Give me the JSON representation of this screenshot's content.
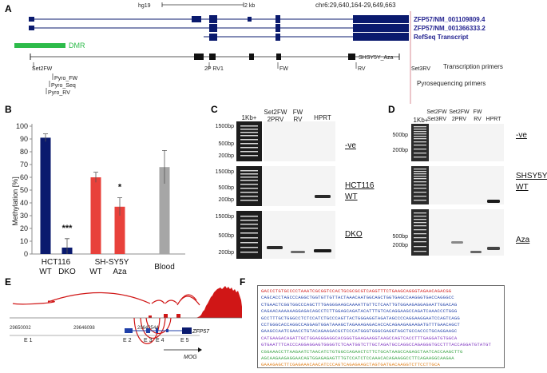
{
  "colors": {
    "navy": "#0a1a6e",
    "red": "#e8413b",
    "darkred": "#d01616",
    "green": "#2dbb4a",
    "grey": "#a6a6a6",
    "pink": "#d98c96",
    "blue": "#1f3fa8"
  },
  "panel_labels": {
    "a": "A",
    "b": "B",
    "c": "C",
    "d": "D",
    "e": "E",
    "f": "F"
  },
  "panel_a": {
    "genome": "hg19",
    "scale": "2 kb",
    "coords": "chr6:29,640,164-29,649,663",
    "tracks": [
      "ZFP57/NM_001109809.4",
      "ZFP57/NM_001366333.2",
      "RefSeq Transcript"
    ],
    "dmr": "DMR",
    "primers": [
      "Set2FW",
      "2P RV1",
      "FW",
      "RV",
      "Set3RV",
      "SHSY5Y_Aza"
    ],
    "pyro_primers": [
      "Pyro_FW",
      "Pyro_Seq",
      "Pyro_RV"
    ],
    "legend_transcription": "Transcription primers",
    "legend_pyro": "Pyrosequencing primers"
  },
  "panel_c": {
    "headers": [
      "1Kb+",
      "Set2FW\n2PRV",
      "FW\nRV",
      "HPRT"
    ],
    "ladder": [
      "1500bp",
      "500bp",
      "200bp"
    ],
    "rows": [
      "-ve",
      "HCT116\nWT",
      "DKO"
    ]
  },
  "panel_d": {
    "headers": [
      "1Kb+",
      "Set2FW\nSet3RV",
      "Set2FW\n2PRV",
      "FW\nRV",
      "HPRT"
    ],
    "ladder_top": [
      "500bp",
      "200bp"
    ],
    "ladder_bottom": [
      "500bp",
      "200bp"
    ],
    "rows": [
      "-ve",
      "SHSY5Y\nWT",
      "Aza"
    ]
  },
  "panel_e": {
    "coords": [
      "29650002",
      "29646098",
      "29642544"
    ],
    "exons": [
      "E 1",
      "E 2",
      "E 3",
      "E 4",
      "E 5"
    ],
    "gene": "ZFP57",
    "mog": "MOG"
  },
  "chart_data": {
    "type": "bar",
    "title": "",
    "ylabel": "Methylation [%]",
    "ylim": [
      0,
      100
    ],
    "yticks": [
      0,
      10,
      20,
      30,
      40,
      50,
      60,
      70,
      80,
      90,
      100
    ],
    "groups": [
      "HCT116",
      "SH-SY5Y",
      "Blood"
    ],
    "categories": [
      "WT",
      "DKO",
      "WT",
      "Aza",
      ""
    ],
    "values": [
      91,
      5,
      60,
      37,
      68
    ],
    "errors": [
      3,
      7,
      4,
      7,
      13
    ],
    "bar_colors": [
      "#0a1a6e",
      "#0a1a6e",
      "#e8413b",
      "#e8413b",
      "#a6a6a6"
    ],
    "significance": [
      {
        "bar": 1,
        "label": "***"
      },
      {
        "bar": 3,
        "label": "*"
      }
    ]
  },
  "panel_f": {
    "lines": [
      {
        "text": "GACCCTGTGCCCCTAAATCGCGGTCCACTGCGCGCGTCAGGTTTCTGAAGCAGGGTAGAACAGACGG",
        "color": "#d01616"
      },
      {
        "text": "CAGCACCTAGCCCAGGCTGGTGTTGTTACTAAACAATGGCAGCTGGTGAGCCAAGGGTGACCAGGGCC",
        "color": "#1f3fa8"
      },
      {
        "text": "CTGAACTCGGTGGCCCAGCTTTGAGGGAAGCAAAATTGTTCTCAATTGTGGAAGAGGAGAATTGGACAG",
        "color": "#1f3fa8"
      },
      {
        "text": "CAGAACAAAAAAGGAGACAGCCTCTTGGAGCAGATACATTTGTCACAGGAAGCCAGATCAAACCCTGGG",
        "color": "#1f3fa8"
      },
      {
        "text": "GCCTTTGCTGGGCCTCTCCATCTGCCCAGTTACTGGGAGGTAGATAGCCCCAGGAAGGAATCCAGTCAGG",
        "color": "#1f3fa8"
      },
      {
        "text": "CCTGGGCACCAGGCCAGGAGTGGATAAAGCTAGAAAGAGACACCACAGAAGAGAAGATGTTTGAACAGCT",
        "color": "#1f3fa8"
      },
      {
        "text": "GAAGCCAATCGAACCTGTACAGAAGACGCTCCCATGGGTGGGCGAGGTAGCTGCCACCCTGCAGGAAGC",
        "color": "#1f3fa8"
      },
      {
        "text": "CATGAAGACAGATTGCTGGAGGGAGGCACGGGTGAAGAAGGTAAGCCAGTCACCTTTGAGGATGTGGCA",
        "color": "#7b2fbf"
      },
      {
        "text": "GTGAATTTCACCCAGGAGGAGTGGGGTCTCAATGGTCTTGCTAGATGCCAGGCCAGAGGGTGCCTTTACCAGGATGTATGT",
        "color": "#7b2fbf"
      },
      {
        "text": "CGGAAACCTTAAGAATCTAACATCTGTGGCCAGAACTCTTCTGCATAAGCCAGAGCTAATCACCAAGCTTG",
        "color": "#2e9e3a"
      },
      {
        "text": "AGCAAGAAGAGGAACAGTGGAGAGAGTTTGTCCATCTCCAAACACAGAAGGCCTTCAGAAGGCAAGAA",
        "color": "#2e9e3a"
      },
      {
        "text": "GAAAGAGCTTCGAGAAACAACATCCCAGTCAGAGAAGCTAGTGATGACAAGGTCTTCCTTGCA",
        "color": "#e07b12"
      },
      {
        "text": "TGCAGAGGGGCCGGCCAGTGCCCCCTATCTGCCCCAGCTGGGACTATGGACAGGA",
        "color": "#e07b12"
      }
    ]
  }
}
